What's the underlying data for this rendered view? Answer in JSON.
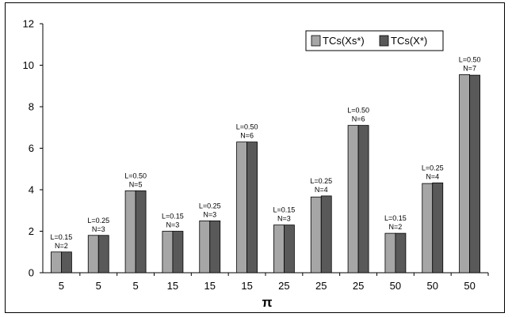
{
  "chart_data": {
    "type": "bar",
    "title": "",
    "xlabel": "π",
    "ylabel": "",
    "ylim": [
      0,
      12
    ],
    "yticks": [
      0,
      2,
      4,
      6,
      8,
      10,
      12
    ],
    "grid": false,
    "legend_position": "top-right",
    "categories": [
      "5",
      "5",
      "5",
      "15",
      "15",
      "15",
      "25",
      "25",
      "25",
      "50",
      "50",
      "50"
    ],
    "annotations": [
      [
        "L=0.15",
        "N=2"
      ],
      [
        "L=0.25",
        "N=3"
      ],
      [
        "L=0.50",
        "N=5"
      ],
      [
        "L=0.15",
        "N=3"
      ],
      [
        "L=0.25",
        "N=3"
      ],
      [
        "L=0.50",
        "N=6"
      ],
      [
        "L=0.15",
        "N=3"
      ],
      [
        "L=0.25",
        "N=4"
      ],
      [
        "L=0.50",
        "N=6"
      ],
      [
        "L=0.15",
        "N=2"
      ],
      [
        "L=0.25",
        "N=4"
      ],
      [
        "L=0.50",
        "N=7"
      ]
    ],
    "series": [
      {
        "name": "TCs(Xs*)",
        "color": "#a6a6a6",
        "values": [
          1.0,
          1.8,
          3.95,
          2.0,
          2.5,
          6.3,
          2.3,
          3.65,
          7.1,
          1.9,
          4.3,
          9.55
        ]
      },
      {
        "name": "TCs(X*)",
        "color": "#595959",
        "values": [
          1.0,
          1.8,
          3.95,
          2.0,
          2.5,
          6.3,
          2.3,
          3.7,
          7.1,
          1.9,
          4.33,
          9.52
        ]
      }
    ]
  }
}
